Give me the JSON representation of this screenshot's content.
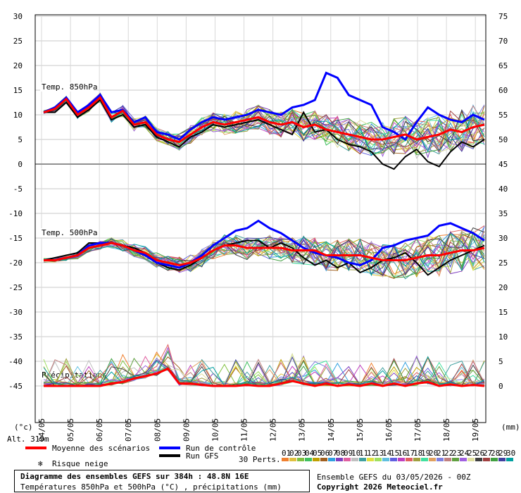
{
  "chart_data": {
    "type": "line",
    "x_dates": [
      "04/05",
      "05/05",
      "06/05",
      "07/05",
      "08/05",
      "09/05",
      "10/05",
      "11/05",
      "12/05",
      "13/05",
      "14/05",
      "15/05",
      "16/05",
      "17/05",
      "18/05",
      "19/05"
    ],
    "left_axis": {
      "unit": "(°c)",
      "ticks": [
        30,
        25,
        20,
        15,
        10,
        5,
        0,
        -5,
        -10,
        -15,
        -20,
        -25,
        -30,
        -35,
        -40,
        -45
      ],
      "range": [
        -45,
        30
      ]
    },
    "right_axis": {
      "unit": "(mm)",
      "ticks": [
        75,
        70,
        65,
        60,
        55,
        50,
        45,
        40,
        35,
        30,
        25,
        20,
        15,
        10,
        5,
        0
      ]
    },
    "panels": {
      "t850": {
        "label": "Temp. 850hPa",
        "mean": [
          10.5,
          11.2,
          13.2,
          10.0,
          11.5,
          13.5,
          9.5,
          10.8,
          8.0,
          8.5,
          6.0,
          5.0,
          4.5,
          6.0,
          7.5,
          8.5,
          8.0,
          8.5,
          9.0,
          9.5,
          8.5,
          8.0,
          8.5,
          7.5,
          8.0,
          7.0,
          6.5,
          6.0,
          5.5,
          5.0,
          5.0,
          5.5,
          6.0,
          5.0,
          5.5,
          6.0,
          7.0,
          6.5,
          7.5,
          8.0
        ],
        "control": [
          10.5,
          11.5,
          13.5,
          10.5,
          12.0,
          14.0,
          10.5,
          11.0,
          8.5,
          9.5,
          6.5,
          6.0,
          5.0,
          7.0,
          8.5,
          9.5,
          9.0,
          9.5,
          10.0,
          11.0,
          10.5,
          10.0,
          11.5,
          12.0,
          13.0,
          18.5,
          17.5,
          14.0,
          13.0,
          12.0,
          7.5,
          6.5,
          5.0,
          8.5,
          11.5,
          10.0,
          9.0,
          8.5,
          10.0,
          9.0
        ],
        "gfs": [
          10.5,
          10.5,
          12.5,
          9.5,
          11.0,
          13.0,
          9.0,
          10.0,
          7.5,
          8.0,
          5.5,
          4.5,
          3.5,
          5.5,
          6.5,
          8.0,
          7.5,
          8.0,
          8.5,
          9.0,
          8.0,
          7.0,
          6.0,
          10.5,
          6.5,
          7.0,
          5.0,
          4.0,
          3.5,
          2.5,
          0.0,
          -1.0,
          1.5,
          3.0,
          0.5,
          -0.5,
          2.5,
          4.5,
          3.5,
          5.0
        ]
      },
      "t500": {
        "label": "Temp. 500hPa",
        "mean": [
          -19.5,
          -19.5,
          -19.0,
          -18.5,
          -17.0,
          -16.5,
          -16.0,
          -16.5,
          -17.5,
          -18.0,
          -19.5,
          -20.0,
          -20.5,
          -20.0,
          -19.0,
          -17.5,
          -16.5,
          -16.5,
          -17.0,
          -17.0,
          -17.0,
          -17.0,
          -17.5,
          -17.5,
          -17.5,
          -18.5,
          -18.5,
          -18.5,
          -18.5,
          -19.0,
          -19.5,
          -19.5,
          -19.5,
          -19.0,
          -18.5,
          -18.5,
          -18.0,
          -17.5,
          -17.5,
          -17.0
        ],
        "control": [
          -19.5,
          -19.5,
          -19.0,
          -18.5,
          -16.5,
          -16.0,
          -16.0,
          -16.5,
          -17.5,
          -18.5,
          -20.0,
          -20.5,
          -21.0,
          -20.0,
          -18.5,
          -16.5,
          -15.0,
          -13.5,
          -13.0,
          -11.5,
          -13.0,
          -14.0,
          -15.5,
          -17.0,
          -18.0,
          -18.5,
          -19.0,
          -20.0,
          -20.5,
          -19.5,
          -17.0,
          -16.5,
          -15.5,
          -15.0,
          -14.5,
          -12.5,
          -12.0,
          -13.0,
          -14.0,
          -15.5
        ],
        "gfs": [
          -19.5,
          -19.0,
          -18.5,
          -18.0,
          -16.0,
          -16.0,
          -16.0,
          -16.5,
          -17.0,
          -18.0,
          -20.0,
          -21.0,
          -21.5,
          -20.5,
          -19.0,
          -17.5,
          -16.5,
          -16.0,
          -15.5,
          -15.5,
          -17.0,
          -16.0,
          -17.0,
          -19.0,
          -20.5,
          -19.5,
          -21.0,
          -20.0,
          -22.0,
          -21.0,
          -19.5,
          -19.0,
          -18.0,
          -20.0,
          -22.5,
          -21.0,
          -19.5,
          -18.5,
          -17.5,
          -16.5
        ]
      },
      "precip": {
        "label": "Précipitations",
        "mean": [
          0,
          0,
          0,
          0,
          0,
          0,
          0.5,
          0.8,
          1.5,
          2.0,
          2.5,
          3.5,
          0.5,
          0.5,
          0.2,
          0,
          0,
          0,
          0.2,
          0,
          0,
          0.5,
          1.0,
          0.5,
          0,
          0.5,
          0,
          0.3,
          0,
          0.5,
          0,
          0.5,
          0,
          0.5,
          0.8,
          0,
          0.3,
          0,
          0.2,
          0
        ]
      }
    },
    "perturbations": 30
  },
  "alt_label": "Alt. 319m",
  "legend": {
    "mean": "Moyenne des scénarios",
    "control": "Run de contrôle",
    "gfs": "Run GFS",
    "snow": "Risque neige",
    "perts": "30 Perts."
  },
  "pert_numbers": [
    "01",
    "02",
    "03",
    "04",
    "05",
    "06",
    "07",
    "08",
    "09",
    "10",
    "11",
    "12",
    "13",
    "14",
    "15",
    "16",
    "17",
    "18",
    "19",
    "20",
    "21",
    "22",
    "23",
    "24",
    "25",
    "26",
    "27",
    "28",
    "29",
    "30"
  ],
  "colors": {
    "mean": "#ff0000",
    "control": "#0000ff",
    "gfs": "#000000",
    "snow": "#4aa8e8",
    "swatches": [
      "#f08030",
      "#e0c040",
      "#80c040",
      "#40c060",
      "#c0a000",
      "#a06020",
      "#30a0e0",
      "#8040c0",
      "#e060a0",
      "#c0c0c0",
      "#40a0a0",
      "#e0e040",
      "#a0e060",
      "#60c0e0",
      "#6060e0",
      "#c040c0",
      "#e06060",
      "#a0a040",
      "#40e0a0",
      "#e0a060",
      "#8080e0",
      "#c08080",
      "#60a040",
      "#a060e0",
      "#e0e0a0",
      "#404040",
      "#a04040",
      "#40a040",
      "#4040a0",
      "#00a0a0"
    ]
  },
  "footer": {
    "title": "Diagramme des ensembles GEFS sur 384h : 48.8N 16E",
    "subtitle": "Températures 850hPa et 500hPa (°C) , précipitations (mm)",
    "run": "Ensemble GEFS du 03/05/2026 - 00Z",
    "copyright": "Copyright 2026 Meteociel.fr"
  }
}
